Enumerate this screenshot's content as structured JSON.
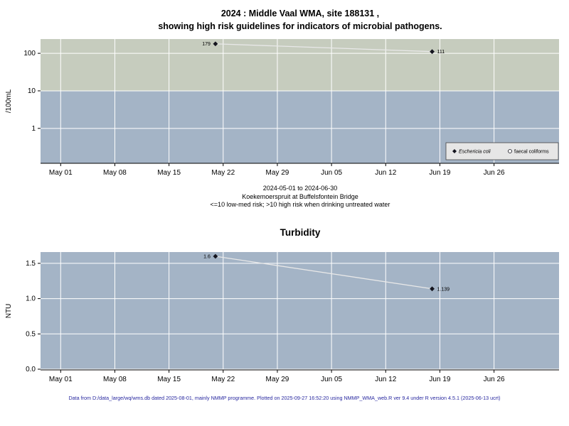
{
  "chart_data": [
    {
      "type": "line",
      "id": "microbial",
      "title": "2024 : Middle Vaal WMA, site 188131 , showing high risk guidelines for indicators of microbial pathogens.",
      "title_line1": "2024 : Middle Vaal WMA, site 188131 ,",
      "title_line2": "showing high risk guidelines for indicators of microbial pathogens.",
      "xlabel": "",
      "ylabel": "/100mL",
      "yscale": "log10",
      "yticks": [
        1,
        10,
        100
      ],
      "ytick_labels": [
        "1",
        "10",
        "100"
      ],
      "ylim_log10": [
        -0.93,
        2.38
      ],
      "xlim_days": [
        -2.6,
        64.4
      ],
      "x_unit": "days since 2024-05-01",
      "xticks": [
        {
          "day": 0,
          "label": "May 01"
        },
        {
          "day": 7,
          "label": "May 08"
        },
        {
          "day": 14,
          "label": "May 15"
        },
        {
          "day": 21,
          "label": "May 22"
        },
        {
          "day": 28,
          "label": "May 29"
        },
        {
          "day": 35,
          "label": "Jun 05"
        },
        {
          "day": 42,
          "label": "Jun 12"
        },
        {
          "day": 49,
          "label": "Jun 19"
        },
        {
          "day": 56,
          "label": "Jun 26"
        }
      ],
      "risk_threshold": 10,
      "series": [
        {
          "name": "Eschericia coli",
          "marker": "filled-diamond",
          "points": [
            {
              "day": 20,
              "value": 179,
              "label": "179",
              "label_side": "left"
            },
            {
              "day": 48,
              "value": 111,
              "label": "111",
              "label_side": "right"
            }
          ]
        },
        {
          "name": "faecal coliforms",
          "marker": "open-circle",
          "points": []
        }
      ],
      "legend": {
        "position": "inside-bottom-right",
        "entries": [
          {
            "label": "Eschericia coli",
            "marker": "filled-diamond",
            "italic": true
          },
          {
            "label": "faecal coliforms",
            "marker": "open-circle",
            "italic": false
          }
        ]
      },
      "subtitle_lines": [
        "2024-05-01 to 2024-06-30",
        "Koekemoerspruit at Buffelsfontein Bridge",
        "<=10 low-med risk; >10 high risk when drinking untreated water"
      ]
    },
    {
      "type": "line",
      "id": "turbidity",
      "title": "Turbidity",
      "xlabel": "",
      "ylabel": "NTU",
      "yscale": "linear",
      "yticks": [
        0,
        0.5,
        1,
        1.5
      ],
      "ytick_labels": [
        "0.0",
        "0.5",
        "1.0",
        "1.5"
      ],
      "ylim": [
        -0.01,
        1.66
      ],
      "xlim_days": [
        -2.6,
        64.4
      ],
      "x_unit": "days since 2024-05-01",
      "xticks": [
        {
          "day": 0,
          "label": "May 01"
        },
        {
          "day": 7,
          "label": "May 08"
        },
        {
          "day": 14,
          "label": "May 15"
        },
        {
          "day": 21,
          "label": "May 22"
        },
        {
          "day": 28,
          "label": "May 29"
        },
        {
          "day": 35,
          "label": "Jun 05"
        },
        {
          "day": 42,
          "label": "Jun 12"
        },
        {
          "day": 49,
          "label": "Jun 19"
        },
        {
          "day": 56,
          "label": "Jun 26"
        }
      ],
      "series": [
        {
          "name": "Turbidity",
          "marker": "filled-diamond",
          "points": [
            {
              "day": 20,
              "value": 1.6,
              "label": "1.6",
              "label_side": "left"
            },
            {
              "day": 48,
              "value": 1.139,
              "label": "1.139",
              "label_side": "right"
            }
          ]
        }
      ]
    }
  ],
  "footer": {
    "text": "Data from D:/data_large/wq/wms.db dated 2025-08-01, mainly NMMP programme. Plotted on 2025-09-27 16:52:20 using NMMP_WMA_web.R ver 9.4 under R version 4.5.1 (2025-06-13 ucrt)"
  },
  "colors": {
    "high_risk_band": "#c6ccbe",
    "low_risk_band": "#a4b4c6",
    "grid": "#ffffff",
    "series_line": "#e8e8e8",
    "point": "#14141e",
    "legend_bg": "#e6e6e6",
    "legend_border": "#444444",
    "footer_text": "#2929a0"
  }
}
